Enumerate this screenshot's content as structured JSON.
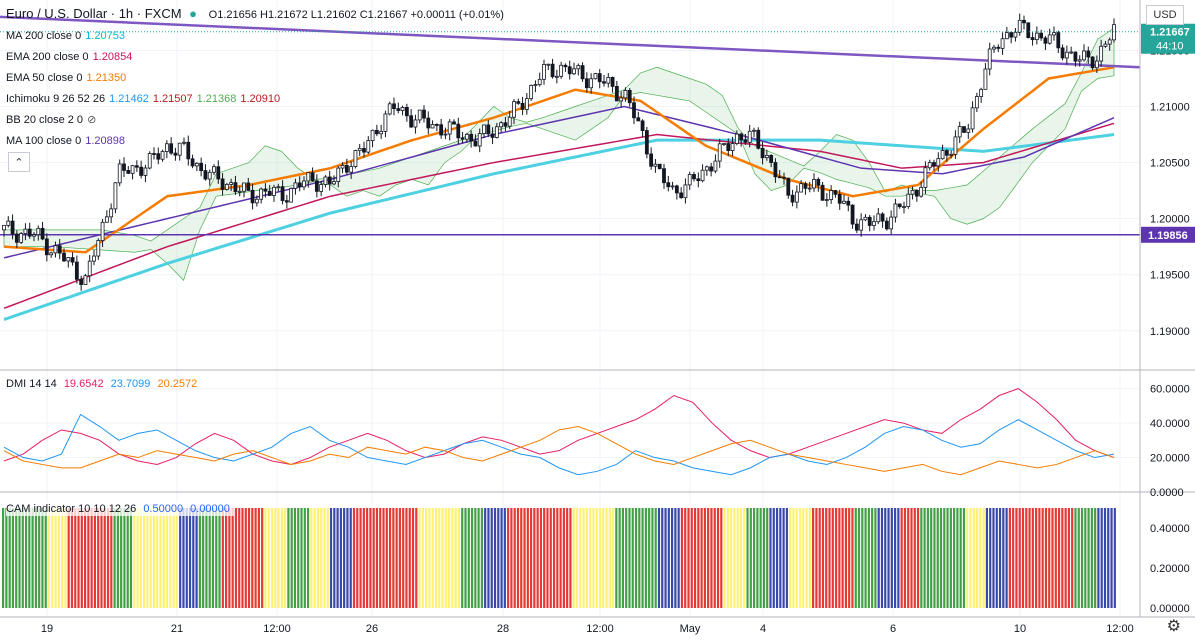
{
  "header": {
    "symbol": "Euro / U.S. Dollar · 1h · FXCM",
    "ohlc": "O1.21656  H1.21672  L1.21602  C1.21667  +0.00011 (+0.01%)"
  },
  "indicators": [
    {
      "label": "MA 200 close 0",
      "value": "1.20753",
      "color": "#00bcd4"
    },
    {
      "label": "EMA 200 close 0",
      "value": "1.20854",
      "color": "#c2185b"
    },
    {
      "label": "EMA 50 close 0",
      "value": "1.21350",
      "color": "#f57c00"
    },
    {
      "label": "Ichimoku 9 26 52 26",
      "values": [
        "1.21462",
        "1.21507",
        "1.21368",
        "1.20910"
      ],
      "colors": [
        "#2196f3",
        "#b71c1c",
        "#4caf50",
        "#b71c1c"
      ]
    },
    {
      "label": "BB 20 close 2 0",
      "value": "",
      "color": "#888888"
    },
    {
      "label": "MA 100 close 0",
      "value": "1.20898",
      "color": "#5e35b1"
    }
  ],
  "price_axis": {
    "unit": "USD",
    "ticks": [
      "1.21000",
      "1.20500",
      "1.20000",
      "1.19500",
      "1.19000"
    ],
    "top_tick": "1.21500",
    "current_price": "1.21667",
    "countdown": "44:10",
    "level_label": "1.19856"
  },
  "dmi": {
    "label": "DMI 14 14",
    "values": [
      "19.6542",
      "23.7099",
      "20.2572"
    ],
    "colors": [
      "#e91e63",
      "#2196f3",
      "#f57c00"
    ],
    "ticks": [
      "60.0000",
      "40.0000",
      "20.0000",
      "0.0000"
    ]
  },
  "cam": {
    "label": "CAM indicator 10 10 12 26",
    "values": [
      "0.50000",
      "0.00000"
    ],
    "ticks": [
      "0.40000",
      "0.20000",
      "0.00000"
    ]
  },
  "time_axis": [
    "19",
    "21",
    "12:00",
    "26",
    "28",
    "12:00",
    "May",
    "4",
    "6",
    "10",
    "12:00"
  ],
  "colors": {
    "up": "#26a69a",
    "down": "#ef5350",
    "candle": "#131722",
    "level": "#5e35b1",
    "trend": "#7e57c2"
  },
  "chart_data": [
    {
      "type": "candlestick",
      "title": "Euro / U.S. Dollar · 1h · FXCM",
      "ylim": [
        1.1865,
        1.2195
      ],
      "close_path": [
        [
          0,
          1.199
        ],
        [
          4,
          1.1985
        ],
        [
          8,
          1.196
        ],
        [
          10,
          1.1945
        ],
        [
          12,
          1.199
        ],
        [
          14,
          1.204
        ],
        [
          16,
          1.2045
        ],
        [
          18,
          1.205
        ],
        [
          20,
          1.2065
        ],
        [
          22,
          1.206
        ],
        [
          24,
          1.2045
        ],
        [
          26,
          1.2035
        ],
        [
          28,
          1.203
        ],
        [
          30,
          1.202
        ],
        [
          32,
          1.2025
        ],
        [
          34,
          1.202
        ],
        [
          36,
          1.203
        ],
        [
          38,
          1.2035
        ],
        [
          40,
          1.203
        ],
        [
          42,
          1.205
        ],
        [
          44,
          1.206
        ],
        [
          46,
          1.2085
        ],
        [
          48,
          1.21
        ],
        [
          50,
          1.209
        ],
        [
          52,
          1.2085
        ],
        [
          54,
          1.208
        ],
        [
          56,
          1.2075
        ],
        [
          58,
          1.207
        ],
        [
          60,
          1.208
        ],
        [
          62,
          1.209
        ],
        [
          64,
          1.211
        ],
        [
          66,
          1.213
        ],
        [
          68,
          1.2135
        ],
        [
          70,
          1.213
        ],
        [
          72,
          1.2125
        ],
        [
          74,
          1.212
        ],
        [
          76,
          1.211
        ],
        [
          78,
          1.208
        ],
        [
          80,
          1.204
        ],
        [
          82,
          1.2025
        ],
        [
          84,
          1.203
        ],
        [
          86,
          1.2045
        ],
        [
          88,
          1.206
        ],
        [
          90,
          1.2075
        ],
        [
          92,
          1.207
        ],
        [
          94,
          1.205
        ],
        [
          96,
          1.202
        ],
        [
          98,
          1.203
        ],
        [
          100,
          1.2025
        ],
        [
          102,
          1.202
        ],
        [
          104,
          1.2
        ],
        [
          106,
          1.1995
        ],
        [
          108,
          1.2
        ],
        [
          110,
          1.201
        ],
        [
          112,
          1.203
        ],
        [
          114,
          1.205
        ],
        [
          116,
          1.2065
        ],
        [
          118,
          1.208
        ],
        [
          120,
          1.213
        ],
        [
          122,
          1.216
        ],
        [
          124,
          1.217
        ],
        [
          126,
          1.2165
        ],
        [
          128,
          1.216
        ],
        [
          130,
          1.215
        ],
        [
          132,
          1.214
        ],
        [
          134,
          1.2145
        ],
        [
          136,
          1.2167
        ]
      ],
      "ema50_path": [
        [
          0,
          1.1975
        ],
        [
          10,
          1.197
        ],
        [
          20,
          1.202
        ],
        [
          30,
          1.203
        ],
        [
          40,
          1.2045
        ],
        [
          50,
          1.207
        ],
        [
          60,
          1.209
        ],
        [
          70,
          1.2115
        ],
        [
          78,
          1.2105
        ],
        [
          86,
          1.2065
        ],
        [
          96,
          1.2035
        ],
        [
          104,
          1.202
        ],
        [
          112,
          1.203
        ],
        [
          120,
          1.208
        ],
        [
          128,
          1.2125
        ],
        [
          136,
          1.2135
        ]
      ],
      "ema200_path": [
        [
          0,
          1.192
        ],
        [
          20,
          1.1975
        ],
        [
          40,
          1.202
        ],
        [
          60,
          1.205
        ],
        [
          80,
          1.2075
        ],
        [
          100,
          1.206
        ],
        [
          110,
          1.2045
        ],
        [
          120,
          1.205
        ],
        [
          136,
          1.2085
        ]
      ],
      "ma200_path": [
        [
          0,
          1.191
        ],
        [
          20,
          1.196
        ],
        [
          40,
          1.2005
        ],
        [
          60,
          1.204
        ],
        [
          80,
          1.207
        ],
        [
          100,
          1.207
        ],
        [
          110,
          1.2065
        ],
        [
          120,
          1.206
        ],
        [
          136,
          1.2075
        ]
      ],
      "ma100_path": [
        [
          0,
          1.1965
        ],
        [
          20,
          1.2
        ],
        [
          40,
          1.2035
        ],
        [
          60,
          1.2075
        ],
        [
          76,
          1.21
        ],
        [
          90,
          1.2075
        ],
        [
          105,
          1.2045
        ],
        [
          115,
          1.204
        ],
        [
          125,
          1.2055
        ],
        [
          136,
          1.209
        ]
      ],
      "horizontal_level": 1.19856,
      "trendline": [
        [
          0,
          1.218
        ],
        [
          136,
          1.2135
        ]
      ]
    },
    {
      "type": "line",
      "title": "DMI 14 14",
      "ylim": [
        0,
        65
      ],
      "series": [
        {
          "name": "19.6542",
          "values": [
            18,
            22,
            30,
            36,
            34,
            30,
            22,
            18,
            16,
            20,
            28,
            34,
            30,
            22,
            18,
            16,
            20,
            26,
            30,
            34,
            30,
            24,
            20,
            22,
            28,
            32,
            30,
            26,
            22,
            24,
            30,
            34,
            38,
            42,
            48,
            56,
            52,
            40,
            30,
            24,
            20,
            22,
            26,
            30,
            34,
            38,
            42,
            40,
            36,
            34,
            42,
            48,
            56,
            60,
            52,
            42,
            30,
            24,
            20
          ]
        },
        {
          "name": "23.7099",
          "values": [
            26,
            20,
            18,
            22,
            45,
            38,
            30,
            34,
            36,
            30,
            24,
            20,
            18,
            22,
            26,
            34,
            38,
            30,
            26,
            20,
            18,
            16,
            20,
            24,
            28,
            30,
            26,
            22,
            20,
            14,
            10,
            12,
            16,
            24,
            20,
            18,
            14,
            12,
            10,
            14,
            20,
            22,
            18,
            16,
            20,
            26,
            34,
            38,
            36,
            30,
            26,
            28,
            36,
            42,
            36,
            30,
            24,
            20,
            22
          ]
        },
        {
          "name": "20.2572",
          "values": [
            24,
            18,
            16,
            14,
            14,
            18,
            22,
            20,
            24,
            22,
            20,
            18,
            22,
            24,
            20,
            16,
            18,
            22,
            20,
            26,
            24,
            22,
            26,
            24,
            20,
            18,
            22,
            26,
            30,
            36,
            38,
            34,
            28,
            22,
            18,
            16,
            20,
            24,
            28,
            30,
            26,
            22,
            20,
            18,
            16,
            14,
            12,
            14,
            16,
            12,
            10,
            14,
            18,
            16,
            14,
            16,
            20,
            24,
            20
          ]
        }
      ],
      "ticks": [
        0,
        20,
        40,
        60
      ]
    },
    {
      "type": "bar",
      "title": "CAM indicator 10 10 12 26",
      "ylim": [
        0,
        0.55
      ],
      "values_constant": 0.5,
      "color_sequence": [
        "green",
        "green",
        "yellow",
        "red",
        "red",
        "green",
        "yellow",
        "yellow",
        "blue",
        "green",
        "red",
        "red",
        "yellow",
        "green",
        "yellow",
        "blue",
        "red",
        "red",
        "red",
        "yellow",
        "yellow",
        "green",
        "blue",
        "red",
        "red",
        "red",
        "yellow",
        "yellow",
        "green",
        "green",
        "blue",
        "red",
        "red",
        "yellow",
        "green",
        "blue",
        "yellow",
        "red",
        "red",
        "green",
        "blue",
        "red",
        "green",
        "green",
        "yellow",
        "blue",
        "red",
        "red",
        "red",
        "green",
        "blue"
      ]
    }
  ]
}
